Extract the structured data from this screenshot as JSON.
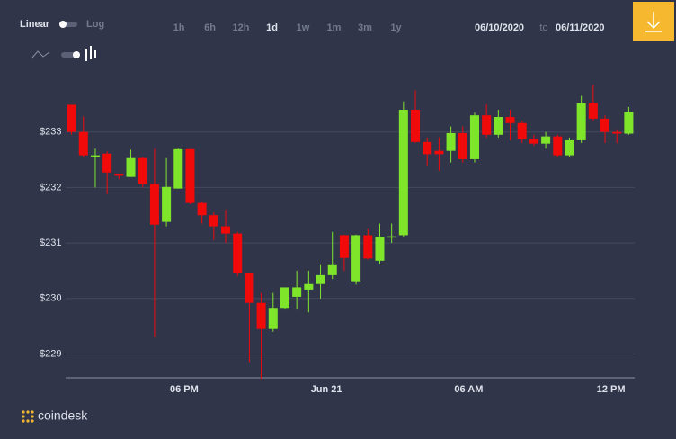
{
  "controls": {
    "scale_options": [
      "Linear",
      "Log"
    ],
    "ranges": [
      "1h",
      "6h",
      "12h",
      "1d",
      "1w",
      "1m",
      "3m",
      "1y"
    ],
    "active_range": 3,
    "date_from": "06/10/2020",
    "date_sep": "to",
    "date_to": "06/11/2020"
  },
  "brand": "coindesk",
  "chart_data": {
    "type": "candlestick",
    "categories": [
      null,
      null,
      null,
      null,
      null,
      null,
      null,
      null,
      null,
      null,
      "06 PM",
      null,
      null,
      null,
      null,
      null,
      null,
      null,
      null,
      null,
      null,
      null,
      "Jun 21",
      null,
      null,
      null,
      null,
      null,
      null,
      null,
      null,
      null,
      null,
      null,
      "06 AM",
      null,
      null,
      null,
      null,
      null,
      null,
      null,
      null,
      null,
      null,
      null,
      "12 PM",
      null
    ],
    "open": [
      233.49,
      233.0,
      232.56,
      232.61,
      232.25,
      232.19,
      232.53,
      232.06,
      231.38,
      231.98,
      232.69,
      231.72,
      231.5,
      231.3,
      231.17,
      230.45,
      229.92,
      229.45,
      229.83,
      230.03,
      230.16,
      230.26,
      230.42,
      231.14,
      230.31,
      231.14,
      230.68,
      231.11,
      231.14,
      233.4,
      232.82,
      232.66,
      232.66,
      232.98,
      232.51,
      233.3,
      232.95,
      233.27,
      233.16,
      232.87,
      232.79,
      232.92,
      232.58,
      232.85,
      233.52,
      233.24,
      233.0,
      232.97
    ],
    "high": [
      233.49,
      233.28,
      232.7,
      232.65,
      232.25,
      232.68,
      232.55,
      232.7,
      232.53,
      232.7,
      232.7,
      231.75,
      231.55,
      231.6,
      231.2,
      230.45,
      230.1,
      230.1,
      230.2,
      230.5,
      230.5,
      230.6,
      231.2,
      231.15,
      231.15,
      231.25,
      231.35,
      231.35,
      233.55,
      233.75,
      232.9,
      232.9,
      233.1,
      233.1,
      233.35,
      233.5,
      233.4,
      233.4,
      233.2,
      232.95,
      233.0,
      232.95,
      232.9,
      233.65,
      233.85,
      233.3,
      233.05,
      233.45
    ],
    "low": [
      232.95,
      232.55,
      232.0,
      231.88,
      232.15,
      232.19,
      232.0,
      229.3,
      231.3,
      231.98,
      231.7,
      231.35,
      231.05,
      231.0,
      230.4,
      228.85,
      228.55,
      229.4,
      229.8,
      229.8,
      229.75,
      230.0,
      230.35,
      230.5,
      230.25,
      230.7,
      230.62,
      231.0,
      231.1,
      232.8,
      232.4,
      232.3,
      232.45,
      232.45,
      232.45,
      232.9,
      232.9,
      232.85,
      232.8,
      232.75,
      232.7,
      232.55,
      232.55,
      232.8,
      233.2,
      232.8,
      232.8,
      232.95
    ],
    "close": [
      233.0,
      232.58,
      232.58,
      232.27,
      232.21,
      232.53,
      232.06,
      231.33,
      232.01,
      232.69,
      231.72,
      231.5,
      231.3,
      231.17,
      230.45,
      229.92,
      229.45,
      229.83,
      230.2,
      230.2,
      230.26,
      230.42,
      230.6,
      230.73,
      231.14,
      230.72,
      231.11,
      231.12,
      233.4,
      232.82,
      232.6,
      232.6,
      232.98,
      232.51,
      233.3,
      232.95,
      233.27,
      233.16,
      232.87,
      232.79,
      232.92,
      232.58,
      232.85,
      233.52,
      233.24,
      233.0,
      232.97,
      233.36
    ],
    "up_color": "#7fe52b",
    "down_color": "#f00a0a",
    "ylim": [
      228.57,
      234.0
    ],
    "yticks": [
      {
        "value": 229,
        "label": "$229"
      },
      {
        "value": 230,
        "label": "$230"
      },
      {
        "value": 231,
        "label": "$231"
      },
      {
        "value": 232,
        "label": "$232"
      },
      {
        "value": 233,
        "label": "$233"
      }
    ],
    "grid": true
  }
}
